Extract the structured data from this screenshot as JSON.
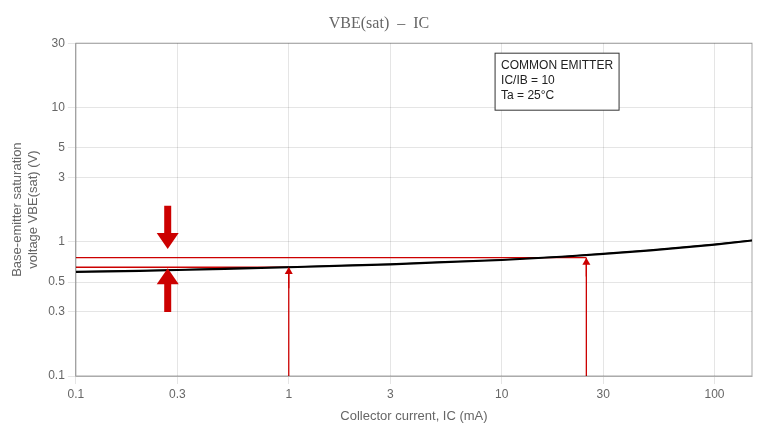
{
  "chart_data": {
    "type": "line",
    "title": "VBE(sat)  –  IC",
    "xlabel": "Collector current, IC (mA)",
    "ylabel": "Base-emitter saturation\nvoltage VBE(sat) (V)",
    "annotation": [
      "COMMON EMITTER",
      "IC/IB = 10",
      "Ta = 25°C"
    ],
    "log": true,
    "grid": true,
    "xlim": [
      0.1,
      150
    ],
    "ylim": [
      0.1,
      30
    ],
    "xticks": [
      0.1,
      0.3,
      1,
      3,
      10,
      30,
      100
    ],
    "yticks": [
      0.1,
      0.3,
      0.5,
      1,
      3,
      5,
      10,
      30
    ],
    "series": [
      {
        "x": [
          0.1,
          0.2,
          0.3,
          0.5,
          1.0,
          2,
          3,
          5,
          10,
          20,
          30,
          50,
          100,
          150
        ],
        "values": [
          0.595,
          0.605,
          0.615,
          0.628,
          0.645,
          0.665,
          0.678,
          0.7,
          0.73,
          0.775,
          0.81,
          0.86,
          0.95,
          1.02
        ],
        "color": "#000000"
      },
      {
        "x": [
          0.1,
          0.2,
          0.3,
          0.5,
          1.0,
          2,
          3,
          5,
          10,
          20,
          30,
          50,
          100,
          150
        ],
        "values": [
          0.598,
          0.608,
          0.618,
          0.632,
          0.648,
          0.668,
          0.68,
          0.702,
          0.732,
          0.778,
          0.814,
          0.864,
          0.955,
          1.025
        ],
        "color": "#000000"
      }
    ],
    "reference_lines": [
      {
        "x": [
          0.1,
          25
        ],
        "y": [
          0.76,
          0.76
        ],
        "color": "#cc0000"
      },
      {
        "x": [
          0.1,
          1.0
        ],
        "y": [
          0.645,
          0.645
        ],
        "color": "#cc0000"
      },
      {
        "x": [
          1.0,
          1.0
        ],
        "y": [
          0.1,
          0.648
        ],
        "color": "#cc0000"
      },
      {
        "x": [
          25,
          25
        ],
        "y": [
          0.1,
          0.76
        ],
        "color": "#cc0000"
      }
    ],
    "arrows": [
      {
        "x": 1.0,
        "y": [
          0.45,
          0.648
        ],
        "color": "#cc0000"
      },
      {
        "x": 25,
        "y": [
          0.55,
          0.76
        ],
        "color": "#cc0000"
      }
    ],
    "bold_arrows": [
      {
        "x": 0.27,
        "y": [
          1.85,
          0.88
        ],
        "color": "#cc0000"
      },
      {
        "x": 0.27,
        "y": [
          0.3,
          0.635
        ],
        "color": "#cc0000"
      }
    ]
  }
}
